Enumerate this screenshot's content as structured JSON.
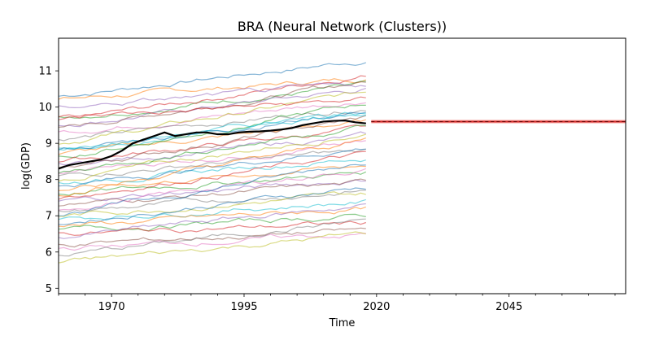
{
  "chart_data": {
    "type": "line",
    "title": "BRA (Neural Network (Clusters))",
    "xlabel": "Time",
    "ylabel": "log(GDP)",
    "xlim": [
      1960,
      2067
    ],
    "ylim": [
      4.85,
      11.9
    ],
    "x_ticks": [
      1970,
      1995,
      2020,
      2045
    ],
    "x_tick_labels": [
      "1970",
      "1995",
      "2020",
      "2045"
    ],
    "y_ticks": [
      5,
      6,
      7,
      8,
      9,
      10,
      11
    ],
    "y_tick_labels": [
      "5",
      "6",
      "7",
      "8",
      "9",
      "10",
      "11"
    ],
    "grid": false,
    "legend": "none",
    "colors": {
      "target": "#000000",
      "forecast": "#d62728",
      "forecast_band": "#f4a6a0",
      "background_palette": [
        "#1f77b4",
        "#ff7f0e",
        "#2ca02c",
        "#d62728",
        "#9467bd",
        "#8c564b",
        "#e377c2",
        "#7f7f7f",
        "#bcbd22",
        "#17becf"
      ]
    },
    "target_series": {
      "x": [
        1960,
        1962,
        1964,
        1966,
        1968,
        1970,
        1972,
        1974,
        1976,
        1978,
        1980,
        1982,
        1984,
        1986,
        1988,
        1990,
        1992,
        1994,
        1996,
        1998,
        2000,
        2002,
        2004,
        2006,
        2008,
        2010,
        2012,
        2014,
        2016,
        2018
      ],
      "values": [
        8.3,
        8.4,
        8.45,
        8.5,
        8.55,
        8.65,
        8.8,
        9.0,
        9.1,
        9.2,
        9.3,
        9.2,
        9.25,
        9.3,
        9.3,
        9.25,
        9.25,
        9.3,
        9.32,
        9.33,
        9.35,
        9.38,
        9.42,
        9.5,
        9.55,
        9.6,
        9.62,
        9.63,
        9.58,
        9.55
      ]
    },
    "forecast_series": {
      "x": [
        2019,
        2025,
        2030,
        2035,
        2040,
        2045,
        2050,
        2055,
        2060,
        2065,
        2067
      ],
      "values": [
        9.6,
        9.6,
        9.6,
        9.6,
        9.6,
        9.6,
        9.6,
        9.6,
        9.6,
        9.6,
        9.6
      ],
      "band_low": [
        9.55,
        9.55,
        9.55,
        9.55,
        9.55,
        9.55,
        9.55,
        9.55,
        9.55,
        9.55,
        9.55
      ],
      "band_high": [
        9.65,
        9.65,
        9.65,
        9.65,
        9.65,
        9.65,
        9.65,
        9.65,
        9.65,
        9.65,
        9.65
      ]
    },
    "background_series": {
      "x_range": [
        1960,
        2018
      ],
      "series": [
        {
          "start": 10.3,
          "end": 11.3,
          "trend": "up"
        },
        {
          "start": 10.2,
          "end": 10.8,
          "trend": "up"
        },
        {
          "start": 9.7,
          "end": 10.6,
          "trend": "up"
        },
        {
          "start": 9.6,
          "end": 10.9,
          "trend": "up"
        },
        {
          "start": 9.5,
          "end": 10.5,
          "trend": "up"
        },
        {
          "start": 9.4,
          "end": 10.7,
          "trend": "up"
        },
        {
          "start": 9.3,
          "end": 10.2,
          "trend": "up"
        },
        {
          "start": 9.1,
          "end": 10.0,
          "trend": "up"
        },
        {
          "start": 9.0,
          "end": 10.4,
          "trend": "up"
        },
        {
          "start": 8.9,
          "end": 9.8,
          "trend": "up"
        },
        {
          "start": 8.8,
          "end": 9.9,
          "trend": "up"
        },
        {
          "start": 8.7,
          "end": 9.6,
          "trend": "up"
        },
        {
          "start": 8.6,
          "end": 10.1,
          "trend": "up"
        },
        {
          "start": 8.5,
          "end": 9.4,
          "trend": "up"
        },
        {
          "start": 8.4,
          "end": 9.2,
          "trend": "up"
        },
        {
          "start": 8.3,
          "end": 9.7,
          "trend": "up"
        },
        {
          "start": 8.2,
          "end": 9.0,
          "trend": "up"
        },
        {
          "start": 8.1,
          "end": 8.8,
          "trend": "up"
        },
        {
          "start": 8.0,
          "end": 9.3,
          "trend": "up"
        },
        {
          "start": 7.9,
          "end": 8.6,
          "trend": "up"
        },
        {
          "start": 7.8,
          "end": 8.9,
          "trend": "up"
        },
        {
          "start": 7.7,
          "end": 8.4,
          "trend": "up"
        },
        {
          "start": 7.6,
          "end": 8.2,
          "trend": "up"
        },
        {
          "start": 7.5,
          "end": 8.7,
          "trend": "up"
        },
        {
          "start": 7.4,
          "end": 8.0,
          "trend": "up"
        },
        {
          "start": 7.3,
          "end": 7.9,
          "trend": "up"
        },
        {
          "start": 7.2,
          "end": 8.3,
          "trend": "up"
        },
        {
          "start": 7.1,
          "end": 7.7,
          "trend": "up"
        },
        {
          "start": 7.0,
          "end": 7.6,
          "trend": "up"
        },
        {
          "start": 6.9,
          "end": 7.4,
          "trend": "up"
        },
        {
          "start": 6.8,
          "end": 7.8,
          "trend": "up"
        },
        {
          "start": 6.7,
          "end": 7.2,
          "trend": "up"
        },
        {
          "start": 6.6,
          "end": 7.0,
          "trend": "up"
        },
        {
          "start": 6.5,
          "end": 6.8,
          "trend": "flat"
        },
        {
          "start": 6.4,
          "end": 7.3,
          "trend": "up"
        },
        {
          "start": 6.2,
          "end": 6.6,
          "trend": "flat"
        },
        {
          "start": 6.1,
          "end": 6.5,
          "trend": "flat"
        },
        {
          "start": 5.9,
          "end": 6.9,
          "trend": "up"
        },
        {
          "start": 5.7,
          "end": 6.5,
          "trend": "up"
        },
        {
          "start": 8.8,
          "end": 9.9,
          "trend": "up"
        },
        {
          "start": 7.0,
          "end": 8.5,
          "trend": "up"
        },
        {
          "start": 7.6,
          "end": 9.1,
          "trend": "up"
        },
        {
          "start": 8.2,
          "end": 9.5,
          "trend": "up"
        },
        {
          "start": 9.7,
          "end": 10.2,
          "trend": "up"
        },
        {
          "start": 10.0,
          "end": 10.6,
          "trend": "up"
        }
      ]
    }
  }
}
